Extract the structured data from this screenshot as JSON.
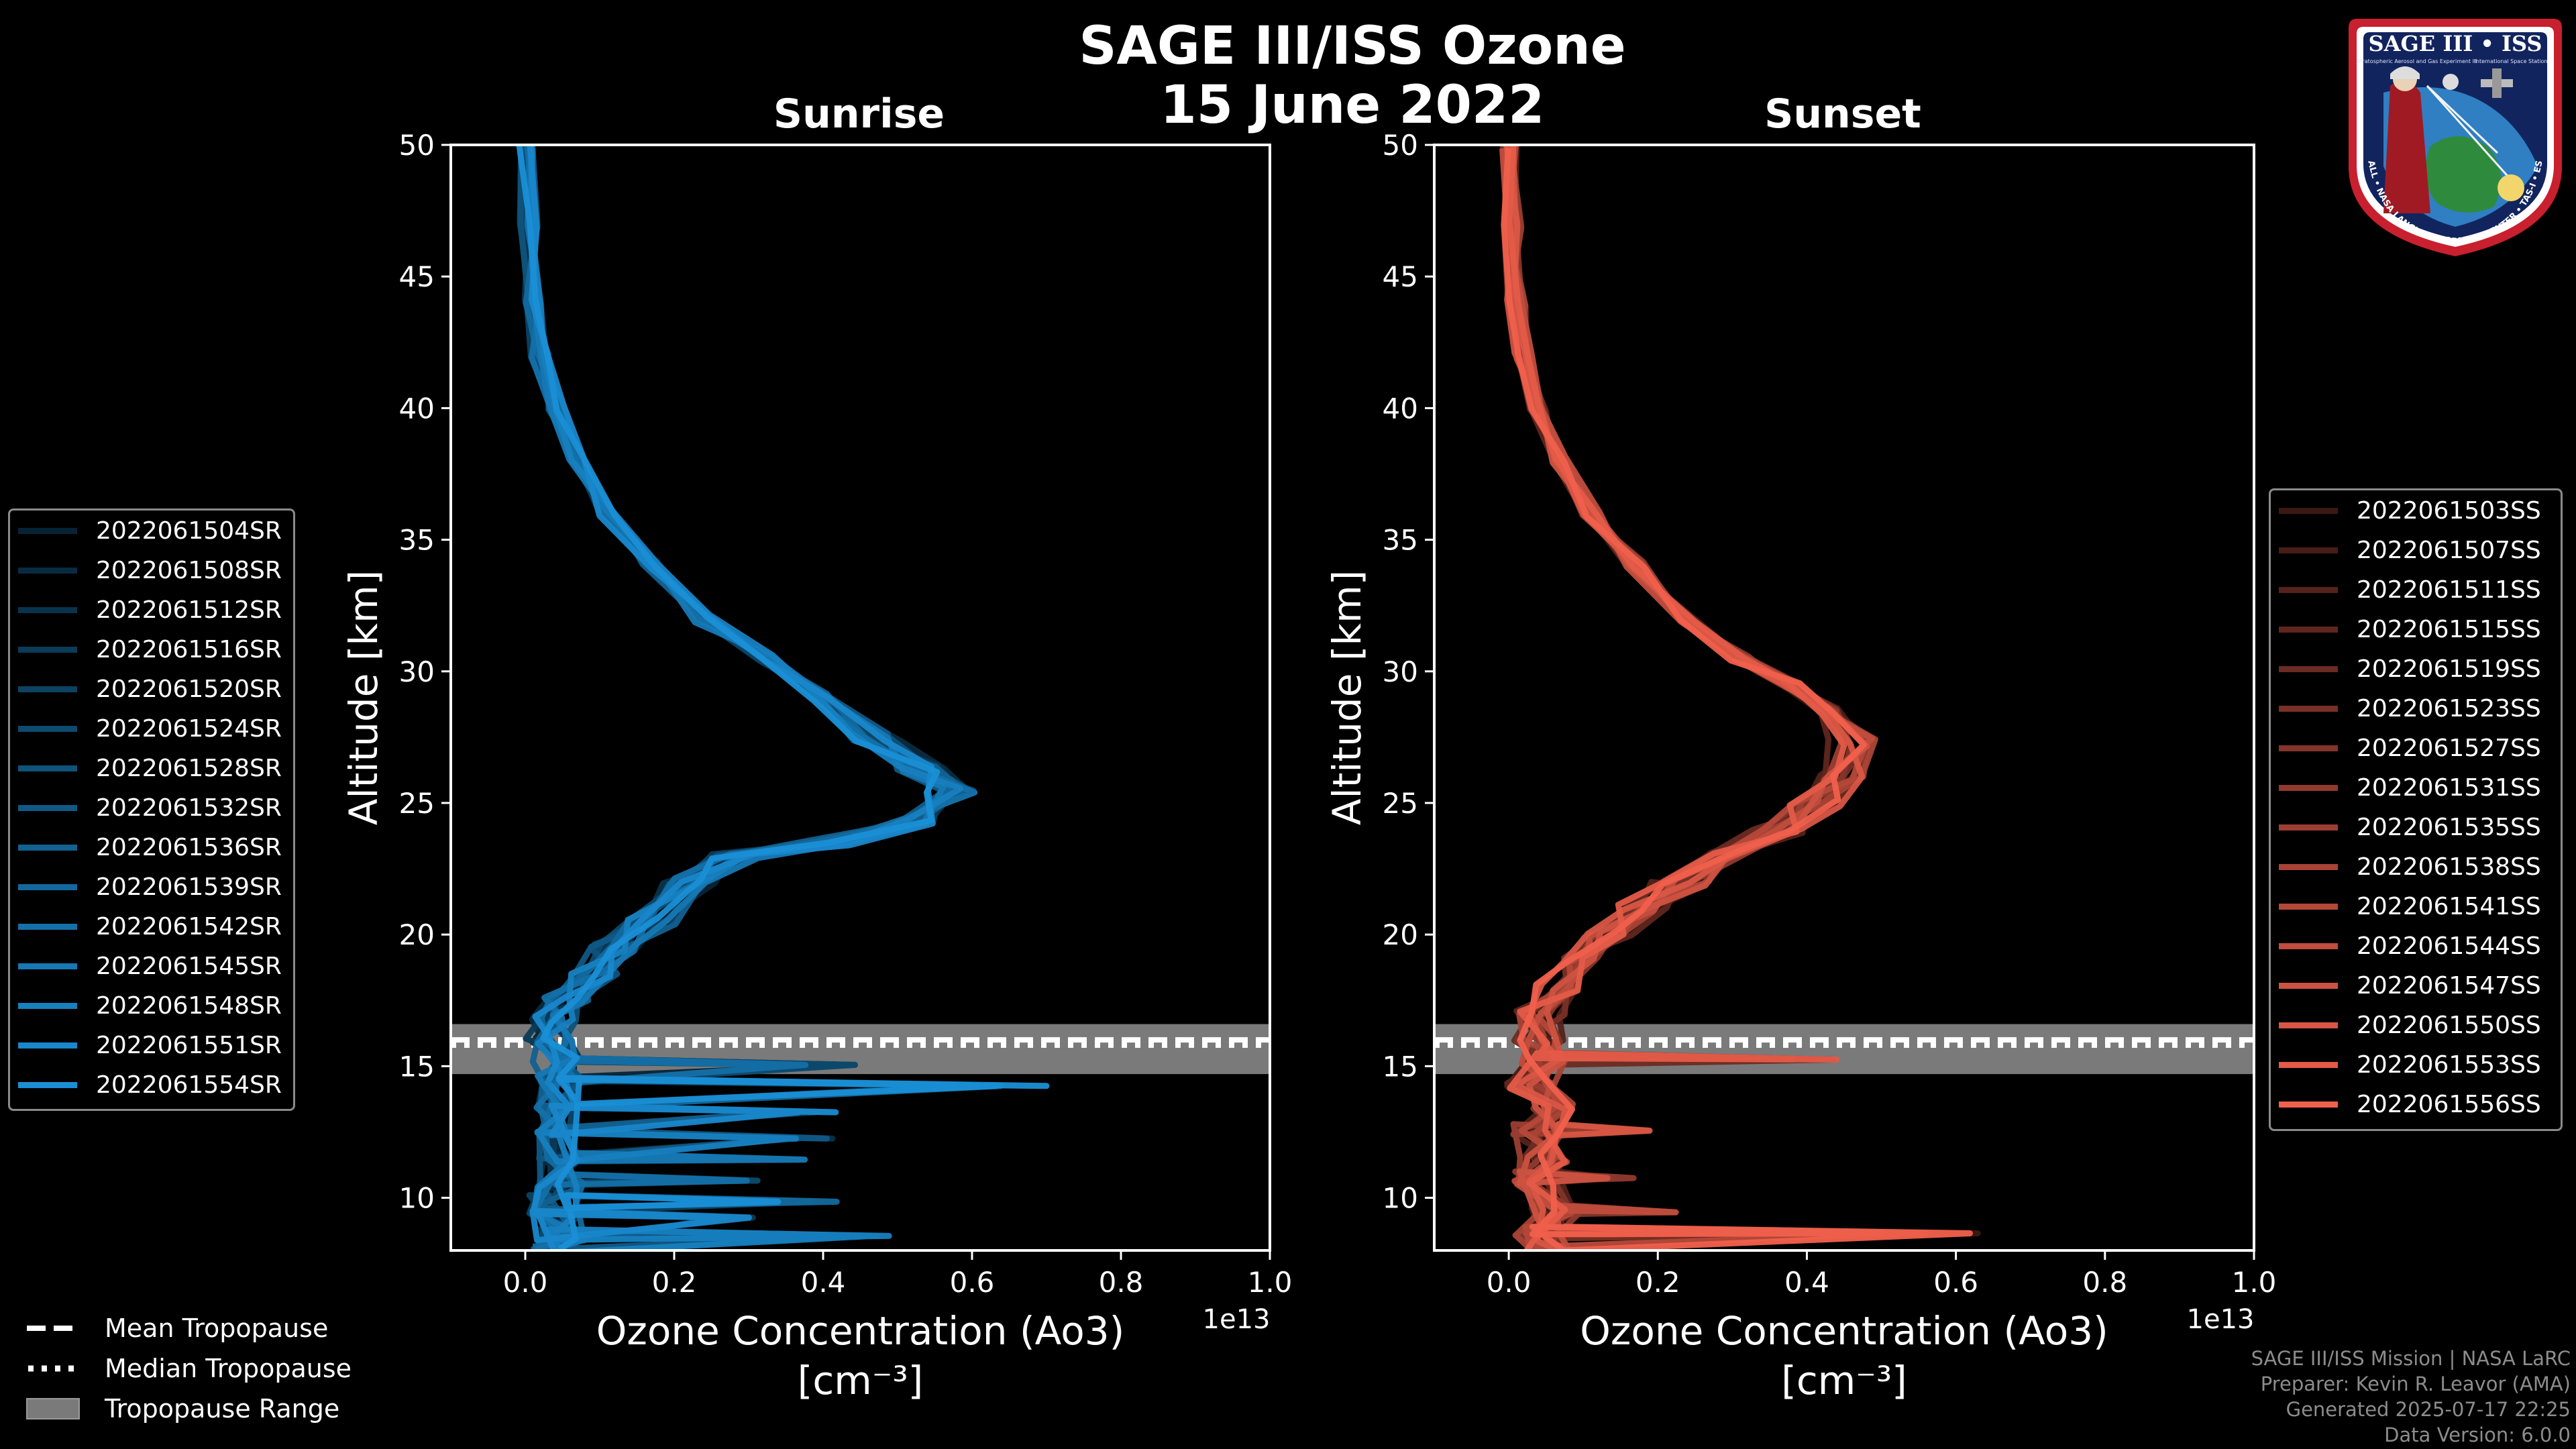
{
  "chart_data": {
    "type": "line",
    "suptitle": "SAGE III/ISS Ozone",
    "date": "15 June 2022",
    "xlabel": "Ozone Concentration (Ao3)",
    "xunits": "[cm⁻³]",
    "ylabel": "Altitude [km]",
    "x_offset": "1e13",
    "xlim": [
      -0.1,
      1.0
    ],
    "ylim": [
      8,
      50
    ],
    "xticks": [
      "0.0",
      "0.2",
      "0.4",
      "0.6",
      "0.8",
      "1.0"
    ],
    "yticks": [
      "10",
      "15",
      "20",
      "25",
      "30",
      "35",
      "40",
      "45",
      "50"
    ],
    "tropopause": {
      "mean_km": 16.0,
      "median_km": 15.8,
      "range_km": [
        14.7,
        16.6
      ]
    },
    "panels": [
      {
        "title": "Sunrise",
        "color": "#1a8fd6",
        "legend": [
          "2022061504SR",
          "2022061508SR",
          "2022061512SR",
          "2022061516SR",
          "2022061520SR",
          "2022061524SR",
          "2022061528SR",
          "2022061532SR",
          "2022061536SR",
          "2022061539SR",
          "2022061542SR",
          "2022061545SR",
          "2022061548SR",
          "2022061551SR",
          "2022061554SR"
        ],
        "profile": [
          [
            0.0,
            50
          ],
          [
            0.005,
            47
          ],
          [
            0.01,
            44
          ],
          [
            0.02,
            42
          ],
          [
            0.04,
            40
          ],
          [
            0.07,
            38
          ],
          [
            0.11,
            36
          ],
          [
            0.17,
            34
          ],
          [
            0.24,
            32
          ],
          [
            0.32,
            30.5
          ],
          [
            0.4,
            29
          ],
          [
            0.47,
            27.5
          ],
          [
            0.53,
            26.3
          ],
          [
            0.57,
            25.5
          ],
          [
            0.53,
            24.3
          ],
          [
            0.41,
            23.5
          ],
          [
            0.28,
            23
          ],
          [
            0.22,
            22
          ],
          [
            0.17,
            20.5
          ],
          [
            0.12,
            19.5
          ],
          [
            0.09,
            18.5
          ],
          [
            0.06,
            17.5
          ],
          [
            0.04,
            16.8
          ],
          [
            0.03,
            16
          ],
          [
            0.04,
            15.3
          ],
          [
            0.05,
            14.5
          ],
          [
            0.04,
            13.5
          ],
          [
            0.05,
            12.5
          ],
          [
            0.04,
            11.5
          ],
          [
            0.05,
            10.5
          ],
          [
            0.04,
            9.5
          ],
          [
            0.05,
            8.5
          ],
          [
            0.04,
            8
          ]
        ],
        "spikes": [
          [
            14.8,
            0.43
          ],
          [
            14.0,
            0.71
          ],
          [
            13.0,
            0.4
          ],
          [
            12.0,
            0.44
          ],
          [
            11.2,
            0.37
          ],
          [
            10.4,
            0.35
          ],
          [
            9.6,
            0.42
          ],
          [
            9.0,
            0.3
          ],
          [
            8.3,
            0.47
          ]
        ]
      },
      {
        "title": "Sunset",
        "color": "#f0604c",
        "legend": [
          "2022061503SS",
          "2022061507SS",
          "2022061511SS",
          "2022061515SS",
          "2022061519SS",
          "2022061523SS",
          "2022061527SS",
          "2022061531SS",
          "2022061535SS",
          "2022061538SS",
          "2022061541SS",
          "2022061544SS",
          "2022061547SS",
          "2022061550SS",
          "2022061553SS",
          "2022061556SS"
        ],
        "profile": [
          [
            0.0,
            50
          ],
          [
            0.005,
            47
          ],
          [
            0.01,
            44
          ],
          [
            0.02,
            42
          ],
          [
            0.04,
            40
          ],
          [
            0.07,
            38
          ],
          [
            0.11,
            36
          ],
          [
            0.17,
            34
          ],
          [
            0.24,
            32
          ],
          [
            0.31,
            30.5
          ],
          [
            0.38,
            29.5
          ],
          [
            0.43,
            28.5
          ],
          [
            0.46,
            27.3
          ],
          [
            0.45,
            26
          ],
          [
            0.41,
            25
          ],
          [
            0.36,
            24
          ],
          [
            0.3,
            23
          ],
          [
            0.24,
            22
          ],
          [
            0.18,
            21
          ],
          [
            0.13,
            20
          ],
          [
            0.09,
            19
          ],
          [
            0.06,
            18
          ],
          [
            0.04,
            17
          ],
          [
            0.04,
            16
          ],
          [
            0.05,
            15.2
          ],
          [
            0.03,
            14.3
          ],
          [
            0.06,
            13.5
          ],
          [
            0.04,
            12.5
          ],
          [
            0.05,
            11.5
          ],
          [
            0.04,
            10.5
          ],
          [
            0.06,
            9.5
          ],
          [
            0.04,
            8.5
          ],
          [
            0.05,
            8
          ]
        ],
        "spikes": [
          [
            22.0,
            0.19
          ],
          [
            15.0,
            0.42
          ],
          [
            12.3,
            0.22
          ],
          [
            10.5,
            0.16
          ],
          [
            9.2,
            0.22
          ],
          [
            8.4,
            0.61
          ]
        ]
      }
    ]
  },
  "tropopause_legend": {
    "mean": "Mean Tropopause",
    "median": "Median Tropopause",
    "range": "Tropopause Range"
  },
  "credits": {
    "line1": "SAGE III/ISS Mission | NASA LaRC",
    "line2": "Preparer: Kevin R. Leavor (AMA)",
    "line3": "Generated 2025-07-17 22:25",
    "line4": "Data Version: 6.0.0"
  },
  "badge": {
    "title": "SAGE III • ISS",
    "subtitle": "Stratospheric Aerosol and Gas Experiment III",
    "station": "International Space Station",
    "rim": "BALL • NASA LANGLEY RESEARCH CENTER • TAS-I • ESA"
  },
  "colors": {
    "sunrise": "#1a8fd6",
    "sunset": "#f0604c",
    "tropopause_band": "#7a7a7a"
  }
}
